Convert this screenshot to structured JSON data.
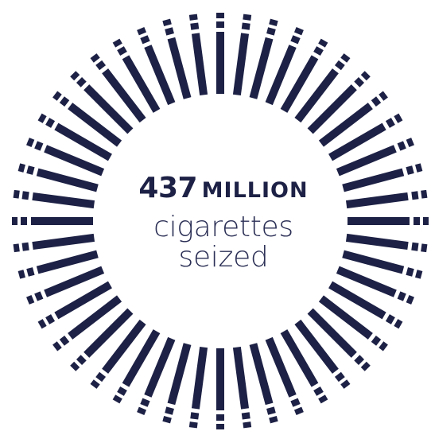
{
  "headline": {
    "number": "437",
    "unit": "MILLION"
  },
  "subline": {
    "line1": "cigarettes",
    "line2": "seized"
  },
  "graphic": {
    "icon": "cigarette-icon",
    "count": 48,
    "color": "#1d2145"
  }
}
